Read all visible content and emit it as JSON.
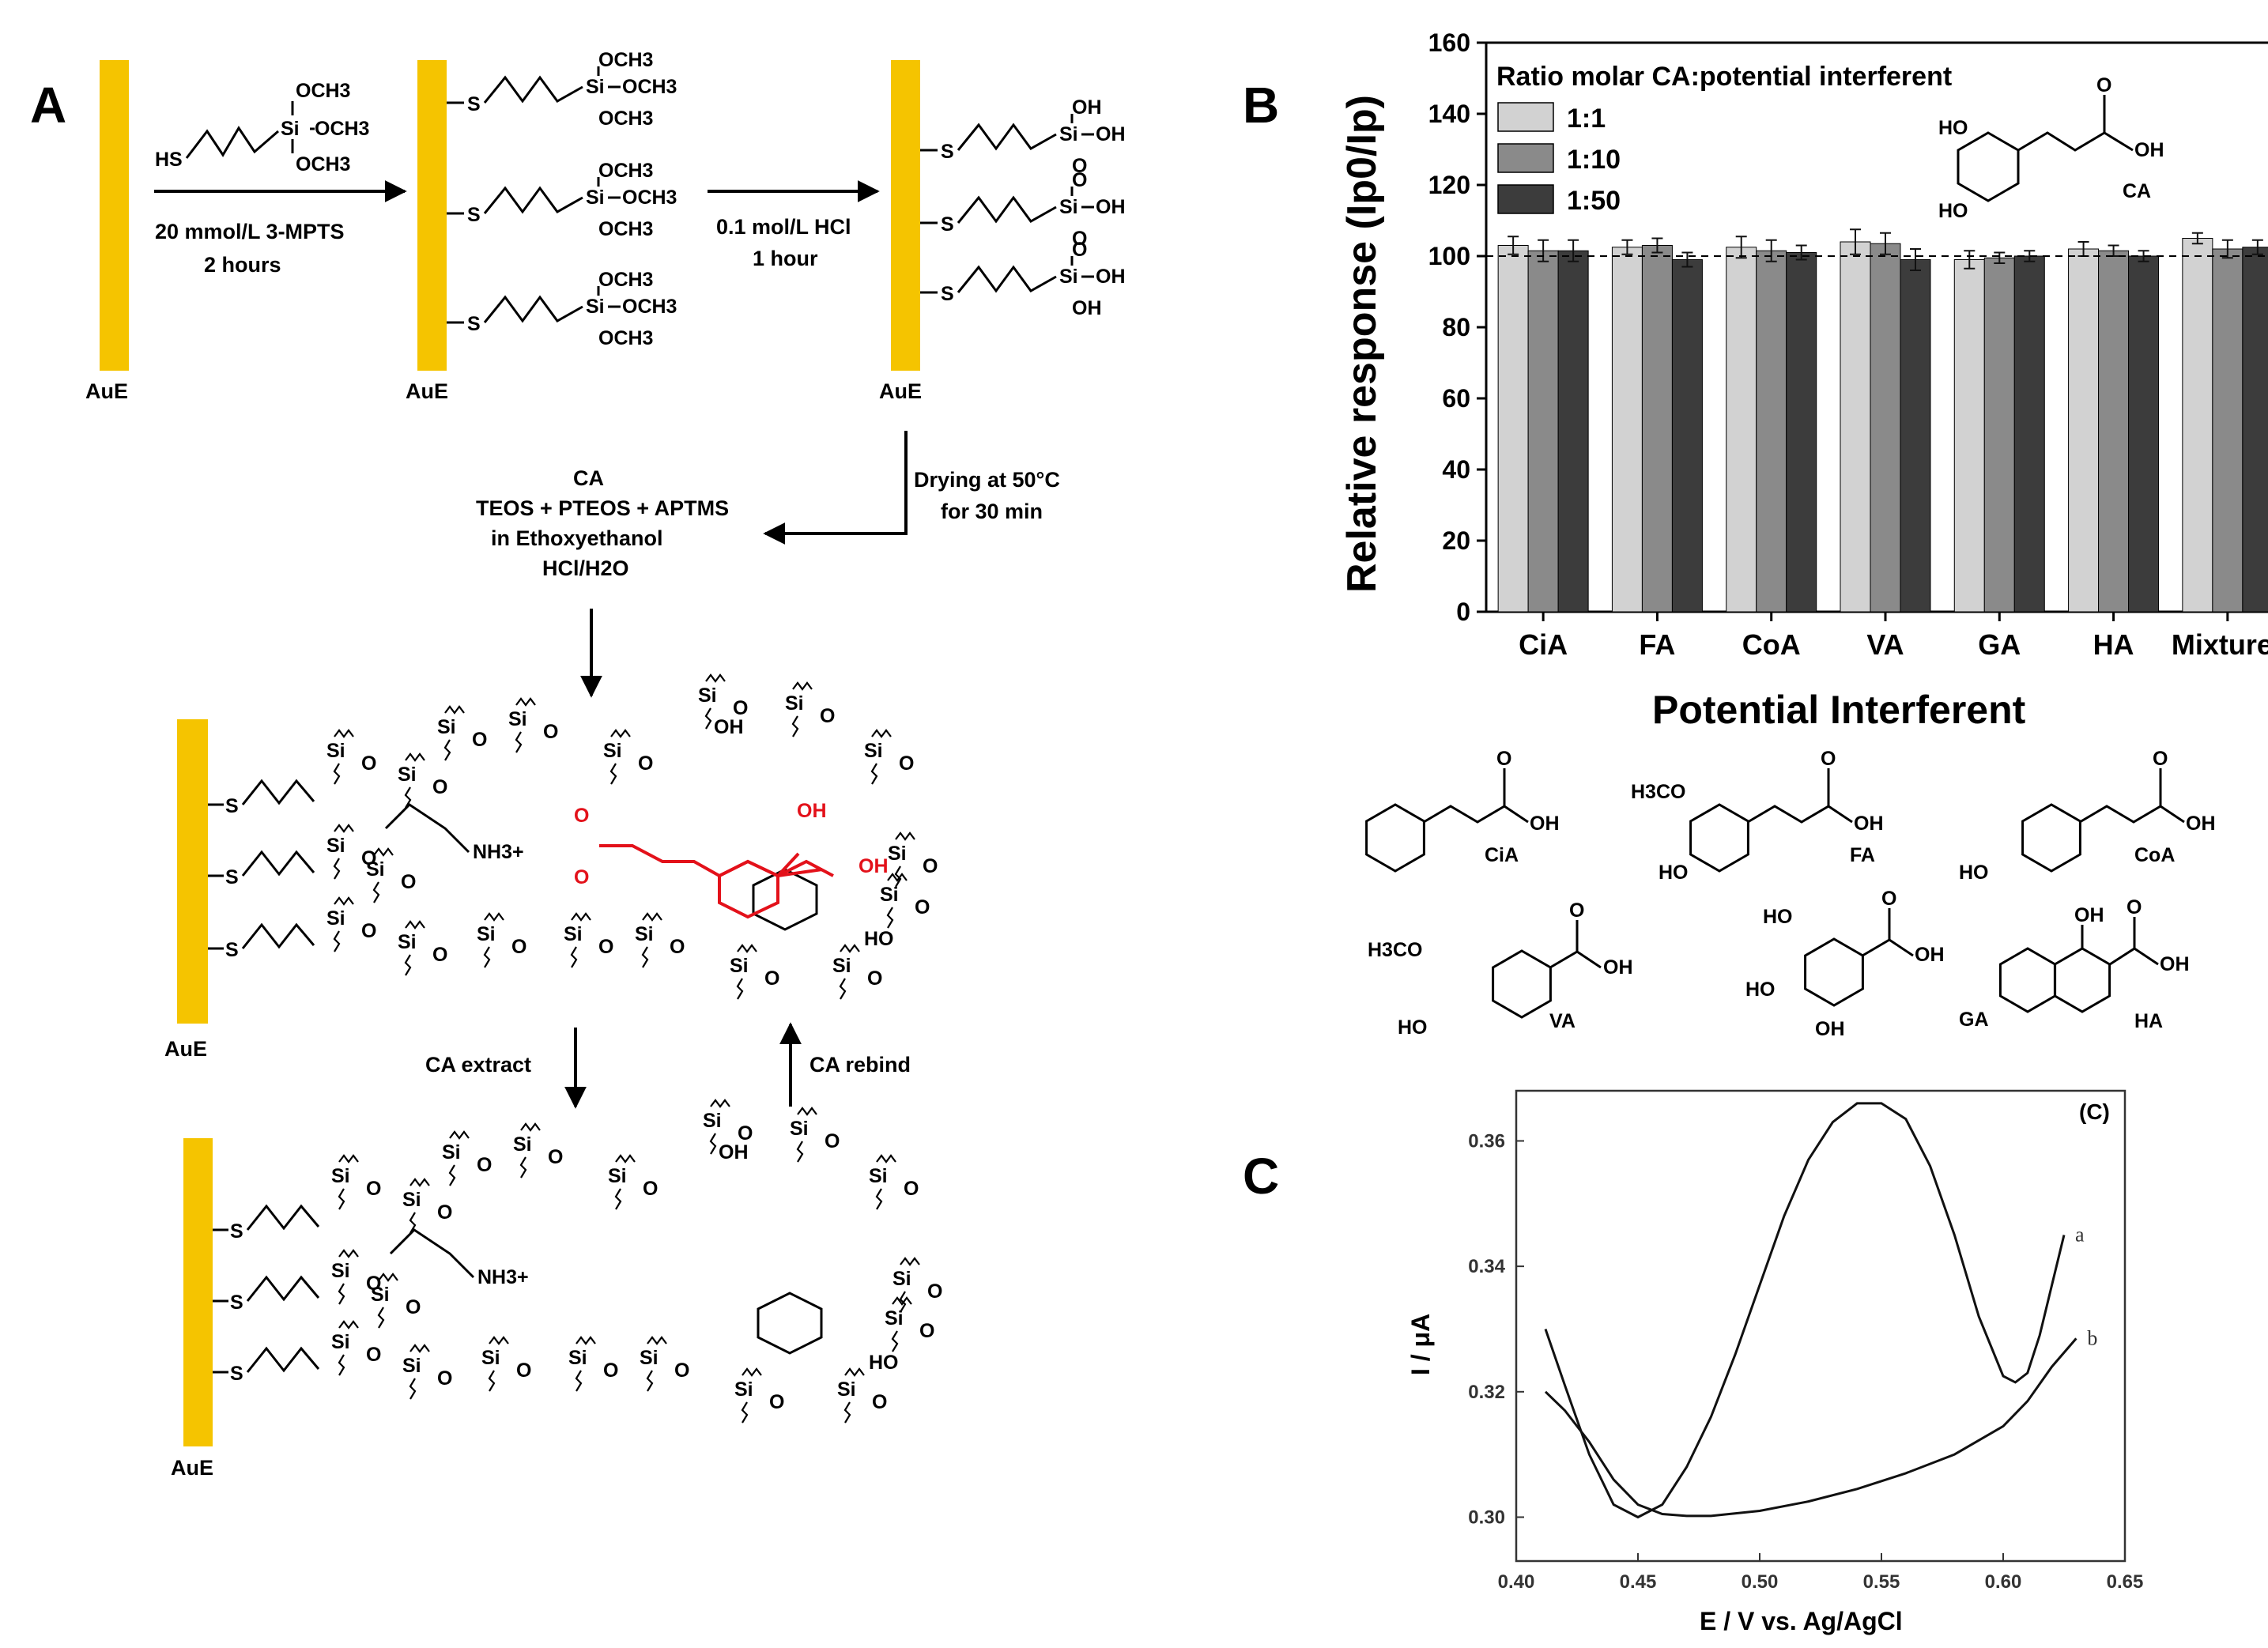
{
  "panels": {
    "a": "A",
    "b": "B",
    "c": "C"
  },
  "scheme": {
    "electrode": "AuE",
    "reagent_formula": {
      "och3_1": "OCH3",
      "och3_2": "OCH3",
      "och3_3": "OCH3",
      "si": "Si",
      "hs": "HS"
    },
    "step1": {
      "line1": "20 mmol/L 3-MPTS",
      "line2": "2 hours"
    },
    "step2": {
      "line1": "0.1 mol/L HCl",
      "line2": "1 hour"
    },
    "step3": {
      "line1": "Drying at 50°C",
      "line2": "for 30 min"
    },
    "step4": {
      "line1": "CA",
      "line2": "TEOS + PTEOS + APTMS",
      "line3": "in Ethoxyethanol",
      "line4": "HCl/H2O"
    },
    "extract": "CA extract",
    "rebind": "CA rebind",
    "atoms": {
      "si": "Si",
      "o": "O",
      "s": "S",
      "oh": "OH",
      "ho": "HO",
      "nh3": "NH3+",
      "och3": "OCH3"
    }
  },
  "chart_b": {
    "chart_data": {
      "type": "bar",
      "title": "",
      "legend_title": "Ratio molar CA:potential interferent",
      "xlabel": "Potential Interferent",
      "ylabel": "Relative response (Ip0/Ip)",
      "ylim": [
        0,
        160
      ],
      "yticks": [
        0,
        20,
        40,
        60,
        80,
        100,
        120,
        140,
        160
      ],
      "reference_line": 100,
      "categories": [
        "CiA",
        "FA",
        "CoA",
        "VA",
        "GA",
        "HA",
        "Mixture*"
      ],
      "series": [
        {
          "name": "1:1",
          "color": "#d2d2d2",
          "values": [
            103,
            102.5,
            102.5,
            104,
            99,
            102,
            105
          ],
          "errors": [
            2.5,
            2,
            3,
            3.5,
            2.5,
            2,
            1.5
          ]
        },
        {
          "name": "1:10",
          "color": "#8a8a8a",
          "values": [
            101.5,
            103,
            101.5,
            103.5,
            99.5,
            101.5,
            102
          ],
          "errors": [
            3,
            2,
            3,
            3,
            1.5,
            1.5,
            2.5
          ]
        },
        {
          "name": "1:50",
          "color": "#3c3c3c",
          "values": [
            101.5,
            99,
            101,
            99,
            100,
            100,
            102.5
          ],
          "errors": [
            3,
            2,
            2,
            3,
            1.5,
            1.5,
            2
          ]
        }
      ]
    }
  },
  "structures": {
    "CA": "CA",
    "CiA": "CiA",
    "FA": "FA",
    "CoA": "CoA",
    "VA": "VA",
    "GA": "GA",
    "HA": "HA",
    "oh": "OH",
    "ho": "HO",
    "o": "O",
    "h3co": "H3CO"
  },
  "chart_c": {
    "chart_data": {
      "type": "line",
      "panel_label": "(C)",
      "xlabel": "E / V vs. Ag/AgCl",
      "ylabel": "I / μA",
      "xlim": [
        0.4,
        0.65
      ],
      "ylim": [
        0.293,
        0.368
      ],
      "xticks": [
        "0.40",
        "0.45",
        "0.50",
        "0.55",
        "0.60",
        "0.65"
      ],
      "yticks": [
        "0.30",
        "0.32",
        "0.34",
        "0.36"
      ],
      "series": [
        {
          "name": "a",
          "x": [
            0.412,
            0.42,
            0.43,
            0.44,
            0.45,
            0.46,
            0.47,
            0.48,
            0.49,
            0.5,
            0.51,
            0.52,
            0.53,
            0.54,
            0.55,
            0.56,
            0.57,
            0.58,
            0.59,
            0.6,
            0.605,
            0.61,
            0.615,
            0.62,
            0.625
          ],
          "y": [
            0.33,
            0.321,
            0.31,
            0.302,
            0.3,
            0.302,
            0.308,
            0.316,
            0.326,
            0.337,
            0.348,
            0.357,
            0.363,
            0.366,
            0.366,
            0.3635,
            0.356,
            0.345,
            0.332,
            0.3225,
            0.3215,
            0.323,
            0.329,
            0.337,
            0.345
          ]
        },
        {
          "name": "b",
          "x": [
            0.412,
            0.42,
            0.43,
            0.44,
            0.45,
            0.46,
            0.47,
            0.48,
            0.5,
            0.52,
            0.54,
            0.56,
            0.58,
            0.6,
            0.61,
            0.62,
            0.63
          ],
          "y": [
            0.32,
            0.317,
            0.312,
            0.306,
            0.302,
            0.3005,
            0.3002,
            0.3002,
            0.301,
            0.3025,
            0.3045,
            0.307,
            0.31,
            0.3145,
            0.3185,
            0.324,
            0.3285
          ]
        }
      ]
    }
  }
}
